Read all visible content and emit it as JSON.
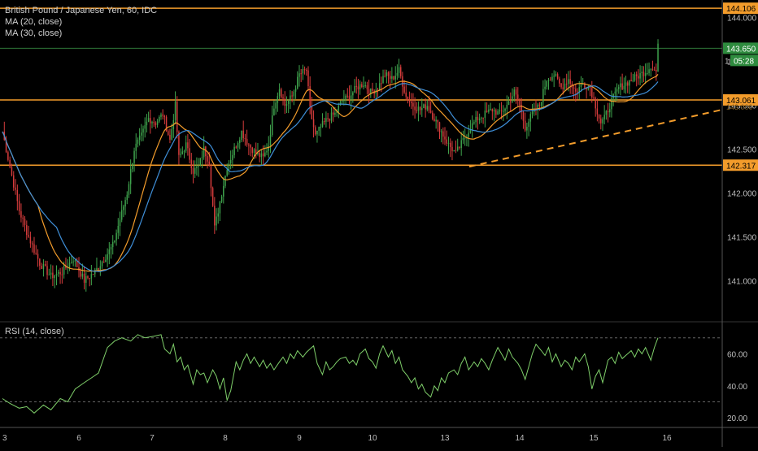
{
  "chart_data": [
    {
      "type": "candlestick",
      "title": "British Pound / Japanese Yen, 60, IDC",
      "indicators": [
        "MA (20, close)",
        "MA (30, close)"
      ],
      "x_tick_labels": [
        "3",
        "6",
        "7",
        "8",
        "9",
        "10",
        "13",
        "14",
        "15",
        "16"
      ],
      "y_tick_labels": [
        "144.000",
        "143.500",
        "143.000",
        "142.500",
        "142.000",
        "141.500",
        "141.000"
      ],
      "y_range": [
        140.55,
        144.2
      ],
      "price_labels": {
        "top_level": "144.106",
        "last_price": "143.650",
        "countdown": "05:28",
        "partial_tick": "1",
        "mid_level": "143.061",
        "mid_level_behind": "143.000",
        "low_level": "142.317"
      },
      "horizontal_levels": [
        144.106,
        143.061,
        142.317
      ],
      "trendline": {
        "from_x_tick": "13",
        "start": 142.3,
        "end": 142.95
      },
      "close_path": [
        [
          0,
          142.7
        ],
        [
          4,
          142.3
        ],
        [
          9,
          141.8
        ],
        [
          14,
          141.5
        ],
        [
          20,
          141.2
        ],
        [
          26,
          141.05
        ],
        [
          32,
          141.1
        ],
        [
          38,
          141.25
        ],
        [
          44,
          141.0
        ],
        [
          50,
          141.1
        ],
        [
          55,
          141.25
        ],
        [
          60,
          141.4
        ],
        [
          64,
          141.7
        ],
        [
          68,
          142.0
        ],
        [
          72,
          142.5
        ],
        [
          76,
          142.65
        ],
        [
          80,
          142.85
        ],
        [
          84,
          142.8
        ],
        [
          88,
          142.9
        ],
        [
          92,
          142.6
        ],
        [
          95,
          143.0
        ],
        [
          97,
          142.4
        ],
        [
          101,
          142.55
        ],
        [
          105,
          142.25
        ],
        [
          108,
          142.3
        ],
        [
          111,
          142.5
        ],
        [
          114,
          142.35
        ],
        [
          117,
          141.6
        ],
        [
          120,
          141.9
        ],
        [
          124,
          142.3
        ],
        [
          128,
          142.5
        ],
        [
          132,
          142.7
        ],
        [
          136,
          142.55
        ],
        [
          140,
          142.45
        ],
        [
          144,
          142.4
        ],
        [
          147,
          142.55
        ],
        [
          150,
          143.0
        ],
        [
          153,
          143.2
        ],
        [
          156,
          143.0
        ],
        [
          160,
          143.1
        ],
        [
          164,
          143.35
        ],
        [
          168,
          143.4
        ],
        [
          170,
          142.95
        ],
        [
          173,
          142.65
        ],
        [
          176,
          142.75
        ],
        [
          180,
          142.85
        ],
        [
          184,
          142.9
        ],
        [
          188,
          143.05
        ],
        [
          192,
          143.1
        ],
        [
          196,
          143.2
        ],
        [
          200,
          143.25
        ],
        [
          204,
          143.15
        ],
        [
          208,
          143.2
        ],
        [
          212,
          143.35
        ],
        [
          216,
          143.3
        ],
        [
          220,
          143.4
        ],
        [
          224,
          143.1
        ],
        [
          228,
          143.0
        ],
        [
          232,
          142.95
        ],
        [
          236,
          143.0
        ],
        [
          240,
          142.85
        ],
        [
          244,
          142.7
        ],
        [
          248,
          142.55
        ],
        [
          252,
          142.45
        ],
        [
          256,
          142.6
        ],
        [
          260,
          142.75
        ],
        [
          264,
          142.85
        ],
        [
          268,
          142.9
        ],
        [
          272,
          142.95
        ],
        [
          276,
          142.9
        ],
        [
          280,
          143.0
        ],
        [
          284,
          143.15
        ],
        [
          287,
          143.0
        ],
        [
          290,
          142.75
        ],
        [
          294,
          142.9
        ],
        [
          298,
          143.0
        ],
        [
          302,
          143.3
        ],
        [
          306,
          143.35
        ],
        [
          310,
          143.2
        ],
        [
          314,
          143.3
        ],
        [
          318,
          143.15
        ],
        [
          322,
          143.25
        ],
        [
          326,
          143.2
        ],
        [
          329,
          143.0
        ],
        [
          332,
          142.8
        ],
        [
          334,
          142.85
        ],
        [
          338,
          143.05
        ],
        [
          342,
          143.2
        ],
        [
          346,
          143.25
        ],
        [
          350,
          143.3
        ],
        [
          354,
          143.35
        ],
        [
          358,
          143.4
        ],
        [
          360,
          143.45
        ],
        [
          363,
          143.38
        ],
        [
          364,
          143.7
        ]
      ],
      "rsi": {
        "label": "RSI (14, close)",
        "y_tick_labels": [
          "60.00",
          "40.00",
          "20.00"
        ],
        "y_range": [
          15,
          78
        ],
        "levels": [
          70,
          30
        ],
        "path": [
          [
            0,
            32
          ],
          [
            4,
            29
          ],
          [
            8,
            26
          ],
          [
            12,
            27
          ],
          [
            16,
            23
          ],
          [
            20,
            28
          ],
          [
            24,
            25
          ],
          [
            28,
            32
          ],
          [
            32,
            30
          ],
          [
            36,
            38
          ],
          [
            40,
            42
          ],
          [
            44,
            45
          ],
          [
            48,
            48
          ],
          [
            52,
            64
          ],
          [
            56,
            68
          ],
          [
            60,
            70
          ],
          [
            64,
            68
          ],
          [
            68,
            72
          ],
          [
            72,
            70
          ],
          [
            76,
            71
          ],
          [
            80,
            72
          ],
          [
            82,
            63
          ],
          [
            84,
            60
          ],
          [
            86,
            66
          ],
          [
            88,
            55
          ],
          [
            90,
            58
          ],
          [
            92,
            50
          ],
          [
            94,
            53
          ],
          [
            96,
            41
          ],
          [
            98,
            50
          ],
          [
            100,
            47
          ],
          [
            102,
            48
          ],
          [
            104,
            42
          ],
          [
            106,
            50
          ],
          [
            108,
            46
          ],
          [
            110,
            38
          ],
          [
            112,
            45
          ],
          [
            114,
            31
          ],
          [
            116,
            37
          ],
          [
            118,
            55
          ],
          [
            120,
            50
          ],
          [
            122,
            56
          ],
          [
            124,
            60
          ],
          [
            126,
            54
          ],
          [
            128,
            58
          ],
          [
            130,
            52
          ],
          [
            132,
            56
          ],
          [
            134,
            51
          ],
          [
            136,
            54
          ],
          [
            138,
            50
          ],
          [
            140,
            55
          ],
          [
            142,
            58
          ],
          [
            144,
            54
          ],
          [
            146,
            60
          ],
          [
            148,
            57
          ],
          [
            150,
            62
          ],
          [
            152,
            58
          ],
          [
            154,
            61
          ],
          [
            156,
            63
          ],
          [
            158,
            65
          ],
          [
            160,
            54
          ],
          [
            162,
            47
          ],
          [
            164,
            55
          ],
          [
            166,
            50
          ],
          [
            168,
            52
          ],
          [
            170,
            55
          ],
          [
            172,
            57
          ],
          [
            174,
            58
          ],
          [
            176,
            54
          ],
          [
            178,
            56
          ],
          [
            180,
            53
          ],
          [
            182,
            60
          ],
          [
            184,
            63
          ],
          [
            186,
            57
          ],
          [
            188,
            55
          ],
          [
            190,
            51
          ],
          [
            192,
            60
          ],
          [
            194,
            65
          ],
          [
            196,
            58
          ],
          [
            198,
            62
          ],
          [
            200,
            54
          ],
          [
            202,
            58
          ],
          [
            204,
            50
          ],
          [
            206,
            46
          ],
          [
            208,
            42
          ],
          [
            210,
            45
          ],
          [
            212,
            38
          ],
          [
            214,
            41
          ],
          [
            216,
            36
          ],
          [
            218,
            33
          ],
          [
            220,
            40
          ],
          [
            222,
            37
          ],
          [
            224,
            45
          ],
          [
            226,
            42
          ],
          [
            228,
            48
          ],
          [
            230,
            50
          ],
          [
            232,
            47
          ],
          [
            234,
            54
          ],
          [
            236,
            58
          ],
          [
            238,
            50
          ],
          [
            240,
            55
          ],
          [
            242,
            52
          ],
          [
            244,
            57
          ],
          [
            246,
            54
          ],
          [
            248,
            50
          ],
          [
            250,
            56
          ],
          [
            252,
            64
          ],
          [
            254,
            60
          ],
          [
            256,
            56
          ],
          [
            258,
            63
          ],
          [
            260,
            58
          ],
          [
            262,
            54
          ],
          [
            264,
            50
          ],
          [
            266,
            44
          ],
          [
            268,
            52
          ],
          [
            270,
            60
          ],
          [
            272,
            66
          ],
          [
            274,
            62
          ],
          [
            276,
            59
          ],
          [
            278,
            64
          ],
          [
            280,
            55
          ],
          [
            282,
            60
          ],
          [
            284,
            52
          ],
          [
            286,
            56
          ],
          [
            288,
            54
          ],
          [
            290,
            50
          ],
          [
            292,
            58
          ],
          [
            294,
            55
          ],
          [
            296,
            60
          ],
          [
            298,
            52
          ],
          [
            300,
            38
          ],
          [
            302,
            46
          ],
          [
            304,
            50
          ],
          [
            306,
            42
          ],
          [
            308,
            56
          ],
          [
            310,
            58
          ],
          [
            312,
            54
          ],
          [
            314,
            61
          ],
          [
            316,
            57
          ],
          [
            318,
            60
          ],
          [
            320,
            62
          ],
          [
            322,
            58
          ],
          [
            324,
            63
          ],
          [
            326,
            60
          ],
          [
            328,
            64
          ],
          [
            330,
            56
          ],
          [
            332,
            64
          ],
          [
            334,
            70
          ]
        ]
      }
    }
  ]
}
